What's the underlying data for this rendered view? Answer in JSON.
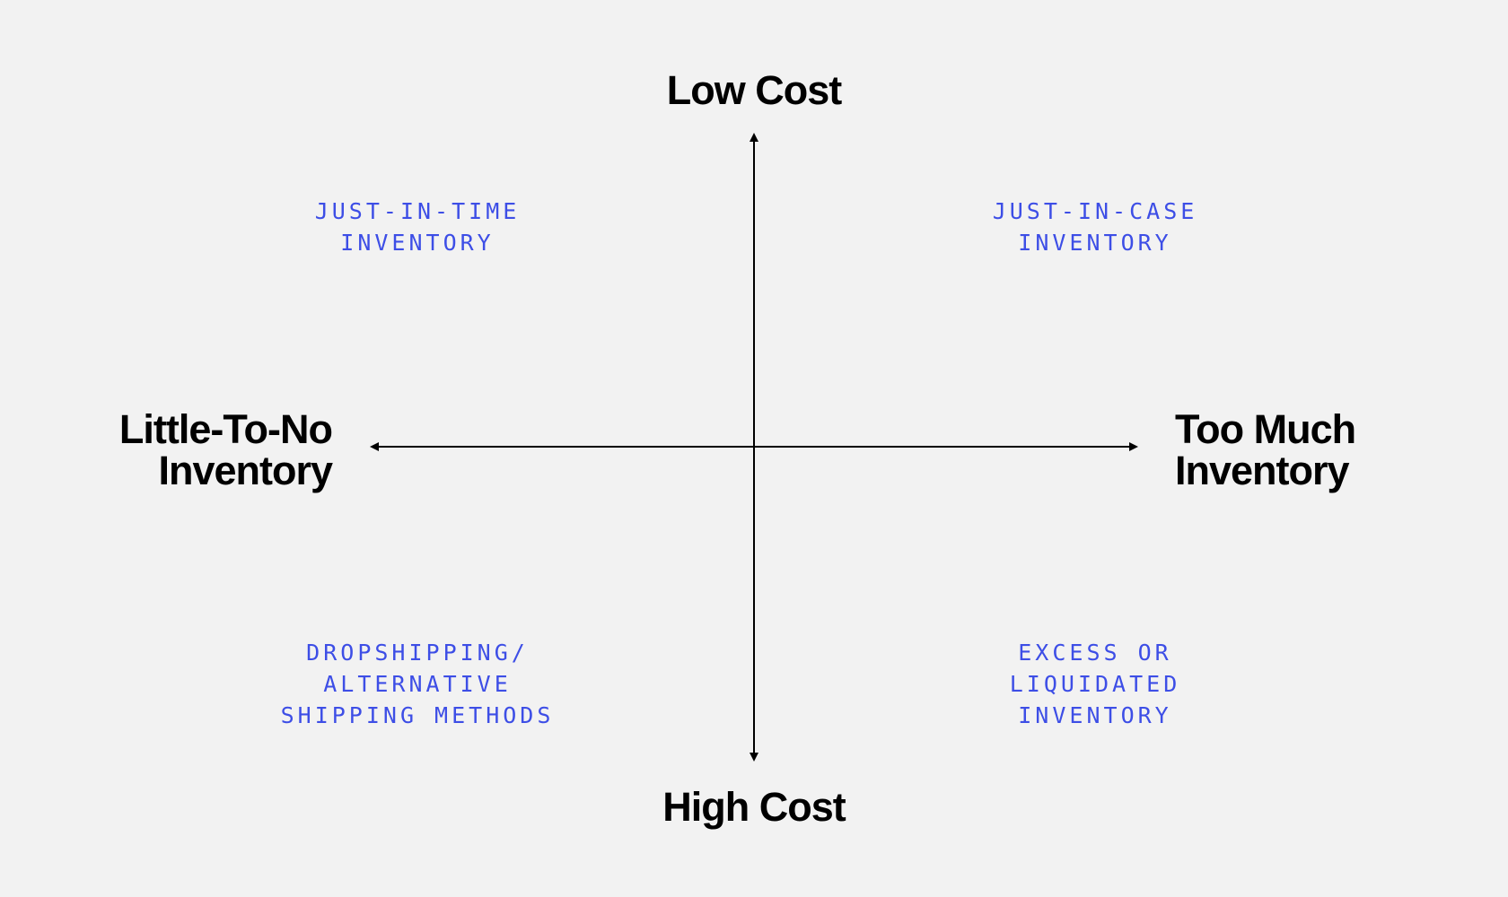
{
  "axes": {
    "top": "Low Cost",
    "bottom": "High Cost",
    "left": [
      "Little-To-No",
      "Inventory"
    ],
    "right": [
      "Too Much",
      "Inventory"
    ]
  },
  "quadrants": {
    "top_left": [
      "JUST-IN-TIME",
      "INVENTORY"
    ],
    "top_right": [
      "JUST-IN-CASE",
      "INVENTORY"
    ],
    "bottom_left": [
      "DROPSHIPPING/",
      "ALTERNATIVE",
      "SHIPPING METHODS"
    ],
    "bottom_right": [
      "EXCESS OR",
      "LIQUIDATED",
      "INVENTORY"
    ]
  },
  "colors": {
    "background": "#f2f2f2",
    "axis": "#000000",
    "quadrant_text": "#3d4ee6"
  }
}
